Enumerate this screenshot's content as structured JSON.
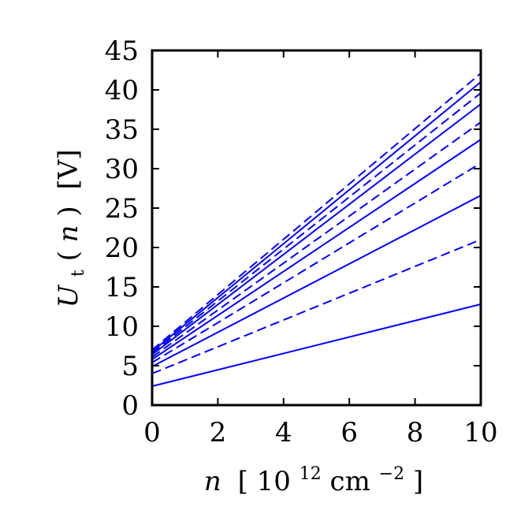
{
  "chart_data": {
    "type": "line",
    "title": "",
    "xlabel": {
      "var": "n",
      "open": "[",
      "mant": "10",
      "exp": "12",
      "unit": "cm",
      "uexp": "−2",
      "close": "]"
    },
    "ylabel": {
      "var": "U",
      "sub": "t",
      "open": "(",
      "arg": "n",
      "close": ")",
      "unit": "[V]"
    },
    "xlim": [
      0,
      10
    ],
    "ylim": [
      0,
      45
    ],
    "xticks": [
      0,
      2,
      4,
      6,
      8,
      10
    ],
    "yticks": [
      0,
      5,
      10,
      15,
      20,
      25,
      30,
      35,
      40,
      45
    ],
    "grid": false,
    "legend": "none",
    "line_color": "#0000ff",
    "series": [
      {
        "style": "solid",
        "x": [
          0,
          10
        ],
        "y": [
          2.4,
          12.8
        ]
      },
      {
        "style": "dashed",
        "x": [
          0,
          10
        ],
        "y": [
          4.0,
          21.0
        ]
      },
      {
        "style": "solid",
        "x": [
          0,
          10
        ],
        "y": [
          4.9,
          26.6
        ]
      },
      {
        "style": "dashed",
        "x": [
          0,
          10
        ],
        "y": [
          5.4,
          30.7
        ]
      },
      {
        "style": "solid",
        "x": [
          0,
          10
        ],
        "y": [
          5.8,
          33.7
        ]
      },
      {
        "style": "dashed",
        "x": [
          0,
          10
        ],
        "y": [
          6.1,
          35.9
        ]
      },
      {
        "style": "solid",
        "x": [
          0,
          10
        ],
        "y": [
          6.4,
          38.2
        ]
      },
      {
        "style": "dashed",
        "x": [
          0,
          10
        ],
        "y": [
          6.6,
          39.6
        ]
      },
      {
        "style": "solid",
        "x": [
          0,
          10
        ],
        "y": [
          6.8,
          41.0
        ]
      },
      {
        "style": "dashed",
        "x": [
          0,
          10
        ],
        "y": [
          7.0,
          42.1
        ]
      }
    ]
  }
}
